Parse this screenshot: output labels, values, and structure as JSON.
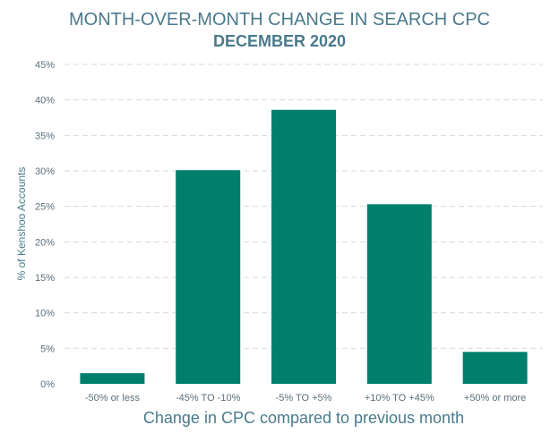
{
  "chart_data": {
    "type": "bar",
    "title": "MONTH-OVER-MONTH CHANGE IN SEARCH CPC",
    "subtitle": "DECEMBER 2020",
    "xlabel": "Change in CPC compared to previous month",
    "ylabel": "% of Kenshoo Accounts",
    "categories": [
      "-50% or less",
      "-45% TO -10%",
      "-5% TO +5%",
      "+10% TO +45%",
      "+50% or more"
    ],
    "values": [
      1.5,
      30.1,
      38.6,
      25.3,
      4.5
    ],
    "ylim": [
      0,
      45
    ],
    "yticks": [
      "0%",
      "5%",
      "10%",
      "15%",
      "20%",
      "25%",
      "30%",
      "35%",
      "40%",
      "45%"
    ],
    "grid": true,
    "bar_color": "#007f6e"
  }
}
